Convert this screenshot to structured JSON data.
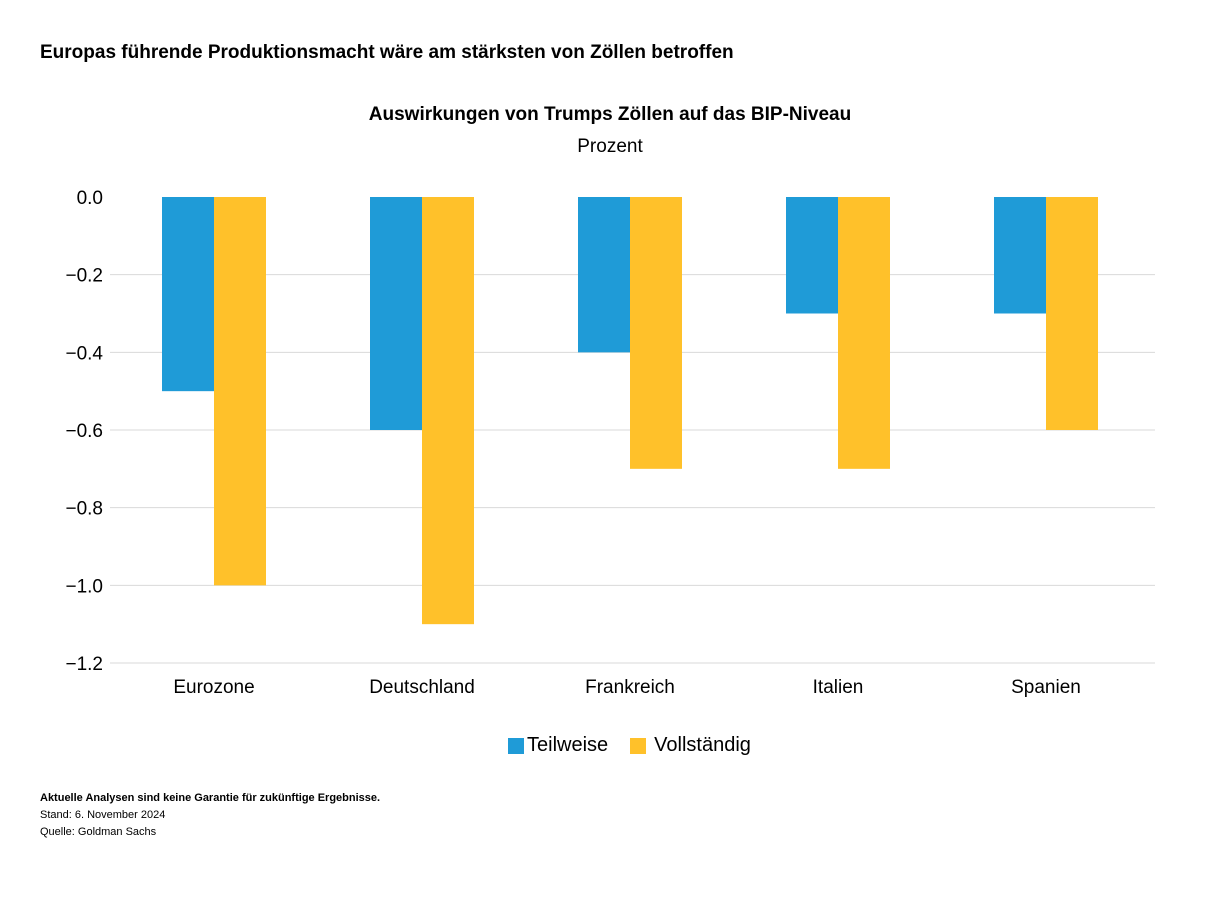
{
  "headline": "Europas führende Produktionsmacht wäre am stärksten von Zöllen betroffen",
  "chart_data": {
    "type": "bar",
    "title": "Auswirkungen von Trumps Zöllen auf das BIP-Niveau",
    "subtitle": "Prozent",
    "categories": [
      "Eurozone",
      "Deutschland",
      "Frankreich",
      "Italien",
      "Spanien"
    ],
    "series": [
      {
        "name": "Teilweise",
        "color": "#1F9BD7",
        "values": [
          -0.5,
          -0.6,
          -0.4,
          -0.3,
          -0.3
        ]
      },
      {
        "name": "Vollständig",
        "color": "#FFC12A",
        "values": [
          -1.0,
          -1.1,
          -0.7,
          -0.7,
          -0.6
        ]
      }
    ],
    "ylim": [
      -1.2,
      0.0
    ],
    "yticks": [
      "0.0",
      "−0.2",
      "−0.4",
      "−0.6",
      "−0.8",
      "−1.0",
      "−1.2"
    ],
    "grid": true,
    "legend": "bottom"
  },
  "footer": {
    "disclaimer": "Aktuelle Analysen sind keine Garantie für zukünftige Ergebnisse.",
    "date": "Stand: 6. November 2024",
    "source": "Quelle: Goldman Sachs"
  }
}
